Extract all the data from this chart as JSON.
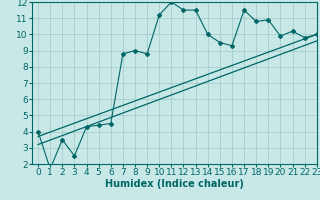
{
  "title": "",
  "xlabel": "Humidex (Indice chaleur)",
  "bg_color": "#c8e8e8",
  "line_color": "#006666",
  "grid_color": "#a8cccc",
  "xlim": [
    -0.5,
    23
  ],
  "ylim": [
    2,
    12
  ],
  "xticks": [
    0,
    1,
    2,
    3,
    4,
    5,
    6,
    7,
    8,
    9,
    10,
    11,
    12,
    13,
    14,
    15,
    16,
    17,
    18,
    19,
    20,
    21,
    22,
    23
  ],
  "yticks": [
    2,
    3,
    4,
    5,
    6,
    7,
    8,
    9,
    10,
    11,
    12
  ],
  "data_x": [
    0,
    1,
    2,
    3,
    4,
    5,
    6,
    7,
    8,
    9,
    10,
    11,
    12,
    13,
    14,
    15,
    16,
    17,
    18,
    19,
    20,
    21,
    22,
    23
  ],
  "data_y": [
    4.0,
    1.7,
    3.5,
    2.5,
    4.3,
    4.4,
    4.5,
    8.8,
    9.0,
    8.8,
    11.2,
    12.0,
    11.5,
    11.5,
    10.0,
    9.5,
    9.3,
    11.5,
    10.8,
    10.9,
    9.9,
    10.2,
    9.8,
    10.0
  ],
  "line1_x": [
    0,
    23
  ],
  "line1_y": [
    3.2,
    9.6
  ],
  "line2_x": [
    0,
    23
  ],
  "line2_y": [
    3.7,
    10.0
  ],
  "xlabel_fontsize": 7,
  "tick_fontsize": 6.5
}
